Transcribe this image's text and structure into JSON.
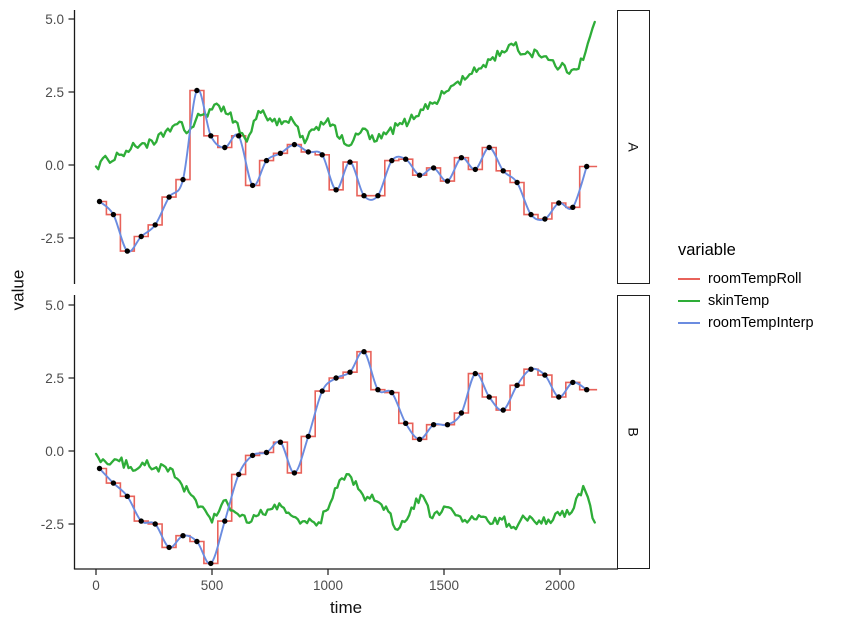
{
  "axes": {
    "x": {
      "label": "time",
      "ticks": [
        0,
        500,
        1000,
        1500,
        2000
      ],
      "tick_labels": [
        "0",
        "500",
        "1000",
        "1500",
        "2000"
      ]
    },
    "y": {
      "label": "value",
      "ticks": [
        5.0,
        2.5,
        0.0,
        -2.5
      ],
      "tick_labels": [
        "5.0",
        "2.5",
        "0.0",
        "-2.5"
      ]
    }
  },
  "facets": [
    {
      "label": "A"
    },
    {
      "label": "B"
    }
  ],
  "legend": {
    "title": "variable",
    "items": [
      {
        "label": "roomTempRoll",
        "color": "#e8625a"
      },
      {
        "label": "skinTemp",
        "color": "#2ead38"
      },
      {
        "label": "roomTempInterp",
        "color": "#6b8ce0"
      }
    ]
  },
  "colors": {
    "roomTempRoll": "#e8625a",
    "skinTemp": "#2ead38",
    "roomTempInterp": "#6b8ce0",
    "points": "#000000",
    "axis_line": "#1a1a1a",
    "tick_text": "#4d4d4d"
  },
  "chart_data": {
    "type": "line",
    "title": "",
    "xlabel": "time",
    "ylabel": "value",
    "facet_variable": [
      "A",
      "B"
    ],
    "series_names": [
      "roomTempRoll",
      "skinTemp",
      "roomTempInterp"
    ],
    "x_domain_shown": [
      -110,
      2250
    ],
    "y_domain_shown": [
      -4.1,
      5.33
    ],
    "note": "roomTempInterp is the smooth line through the black points; roomTempRoll is the step line through the same points (steps switch at midpoints, short tail after last point); skinTemp is a noisy trace.",
    "facets": [
      {
        "facet": "A",
        "roomTemp_points": {
          "t": [
            15,
            75,
            135,
            195,
            255,
            315,
            375,
            435,
            495,
            555,
            615,
            675,
            735,
            795,
            855,
            915,
            975,
            1035,
            1095,
            1155,
            1215,
            1275,
            1335,
            1395,
            1455,
            1515,
            1575,
            1635,
            1695,
            1755,
            1815,
            1875,
            1935,
            1995,
            2055,
            2115
          ],
          "value": [
            -1.25,
            -1.7,
            -2.95,
            -2.45,
            -2.05,
            -1.1,
            -0.5,
            2.55,
            1.0,
            0.6,
            1.0,
            -0.7,
            0.15,
            0.4,
            0.7,
            0.45,
            0.35,
            -0.85,
            0.1,
            -1.05,
            -1.05,
            0.15,
            0.2,
            -0.35,
            -0.1,
            -0.55,
            0.25,
            -0.15,
            0.6,
            -0.2,
            -0.6,
            -1.7,
            -1.85,
            -1.3,
            -1.45,
            -0.05
          ]
        },
        "skinTemp": {
          "t": [
            0,
            50,
            100,
            150,
            200,
            250,
            300,
            350,
            400,
            450,
            500,
            550,
            600,
            650,
            700,
            750,
            800,
            850,
            900,
            950,
            1000,
            1050,
            1100,
            1150,
            1200,
            1250,
            1300,
            1350,
            1400,
            1450,
            1500,
            1550,
            1600,
            1650,
            1700,
            1750,
            1800,
            1850,
            1900,
            1950,
            2000,
            2050,
            2100,
            2150
          ],
          "value": [
            -0.05,
            0.2,
            0.35,
            0.55,
            0.75,
            0.7,
            1.15,
            1.4,
            1.15,
            1.7,
            1.9,
            2.0,
            1.5,
            0.8,
            1.85,
            1.6,
            1.4,
            1.5,
            0.75,
            1.3,
            1.6,
            0.9,
            0.7,
            1.25,
            0.8,
            1.05,
            1.35,
            1.5,
            1.9,
            2.1,
            2.45,
            2.8,
            3.0,
            3.3,
            3.6,
            3.9,
            4.1,
            3.8,
            3.9,
            3.6,
            3.35,
            3.25,
            3.6,
            4.9
          ]
        }
      },
      {
        "facet": "B",
        "roomTemp_points": {
          "t": [
            15,
            75,
            135,
            195,
            255,
            315,
            375,
            435,
            495,
            555,
            615,
            675,
            735,
            795,
            855,
            915,
            975,
            1035,
            1095,
            1155,
            1215,
            1275,
            1335,
            1395,
            1455,
            1515,
            1575,
            1635,
            1695,
            1755,
            1815,
            1875,
            1935,
            1995,
            2055,
            2115
          ],
          "value": [
            -0.6,
            -1.1,
            -1.55,
            -2.4,
            -2.5,
            -3.3,
            -2.9,
            -3.1,
            -3.85,
            -2.4,
            -0.8,
            -0.15,
            -0.05,
            0.3,
            -0.75,
            0.5,
            2.05,
            2.5,
            2.7,
            3.4,
            2.1,
            2.0,
            0.95,
            0.4,
            0.9,
            0.9,
            1.3,
            2.65,
            1.85,
            1.4,
            2.25,
            2.8,
            2.6,
            1.85,
            2.35,
            2.1
          ]
        },
        "skinTemp": {
          "t": [
            0,
            50,
            100,
            150,
            200,
            250,
            300,
            350,
            400,
            450,
            500,
            550,
            600,
            650,
            700,
            750,
            800,
            850,
            900,
            950,
            1000,
            1050,
            1100,
            1150,
            1200,
            1250,
            1300,
            1350,
            1400,
            1450,
            1500,
            1550,
            1600,
            1650,
            1700,
            1750,
            1800,
            1850,
            1900,
            1950,
            2000,
            2050,
            2100,
            2150
          ],
          "value": [
            -0.1,
            -0.45,
            -0.35,
            -0.55,
            -0.4,
            -0.6,
            -0.55,
            -0.95,
            -1.4,
            -1.9,
            -2.45,
            -1.7,
            -2.1,
            -2.45,
            -2.2,
            -2.0,
            -1.9,
            -2.25,
            -2.4,
            -2.55,
            -2.0,
            -1.0,
            -0.9,
            -1.5,
            -1.7,
            -1.9,
            -2.7,
            -2.2,
            -1.5,
            -2.3,
            -1.9,
            -2.2,
            -2.45,
            -2.2,
            -2.5,
            -2.35,
            -2.6,
            -2.3,
            -2.5,
            -2.35,
            -2.2,
            -2.1,
            -1.2,
            -2.45
          ]
        }
      }
    ]
  }
}
